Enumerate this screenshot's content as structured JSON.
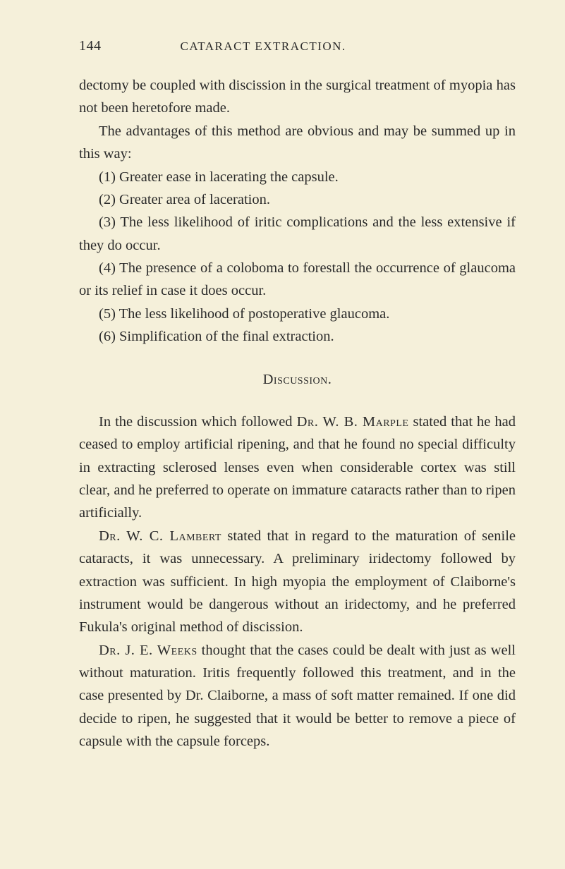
{
  "page": {
    "number": "144",
    "running_head": "CATARACT EXTRACTION."
  },
  "lead": {
    "p1": "dectomy be coupled with discission in the surgical treatment of myopia has not been heretofore made.",
    "p2": "The advantages of this method are obvious and may be summed up in this way:"
  },
  "advantages": [
    "(1) Greater ease in lacerating the capsule.",
    "(2) Greater area of laceration.",
    "(3) The less likelihood of iritic complications and the less extensive if they do occur.",
    "(4) The presence of a coloboma to forestall the occurrence of glaucoma or its relief in case it does occur.",
    "(5) The less likelihood of postoperative glaucoma.",
    "(6) Simplification of the final extraction."
  ],
  "discussion": {
    "heading_prefix": "D",
    "heading_rest": "iscussion.",
    "p1_pre": "In the discussion which followed ",
    "p1_name": "Dr. W. B. Marple",
    "p1_post": " stated that he had ceased to employ artificial ripening, and that he found no special difficulty in extracting sclerosed lenses even when considerable cortex was still clear, and he preferred to operate on immature cataracts rather than to ripen artificially.",
    "p2_name": "Dr. W. C. Lambert",
    "p2_post": " stated that in regard to the maturation of senile cataracts, it was unnecessary. A preliminary iridectomy followed by extraction was sufficient. In high myopia the employment of Claiborne's instrument would be dangerous without an iridectomy, and he preferred Fukula's original method of discission.",
    "p3_name": "Dr. J. E. Weeks",
    "p3_post": " thought that the cases could be dealt with just as well without maturation. Iritis frequently followed this treatment, and in the case presented by Dr. Claiborne, a mass of soft matter remained. If one did decide to ripen, he suggested that it would be better to remove a piece of capsule with the capsule forceps."
  }
}
